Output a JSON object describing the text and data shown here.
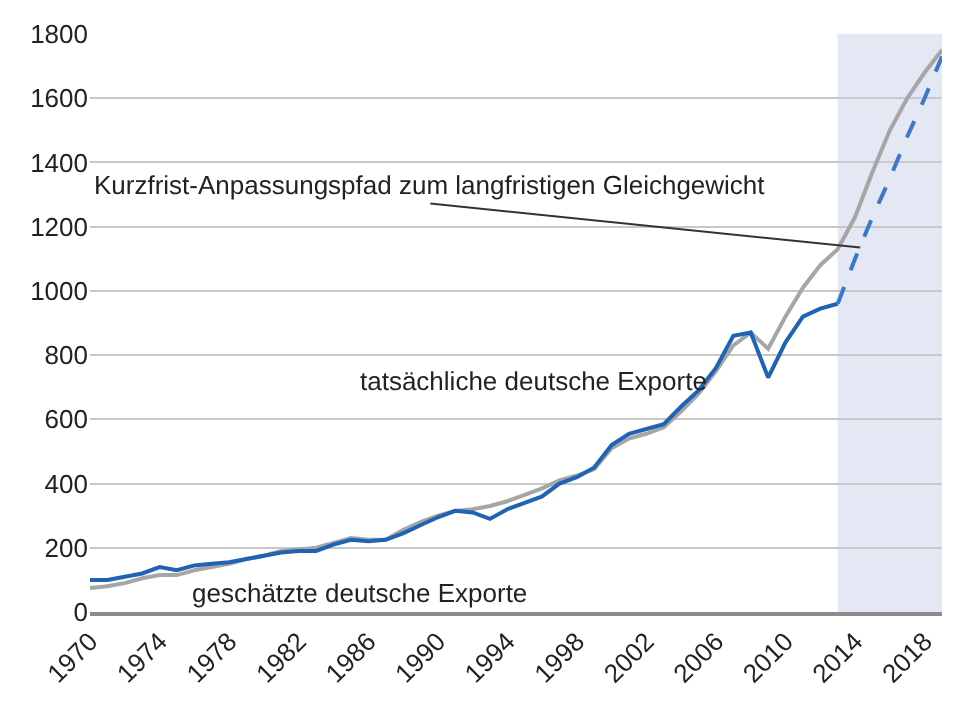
{
  "chart_data": {
    "type": "line",
    "xlim": [
      1970,
      2019
    ],
    "xticks": [
      1970,
      1974,
      1978,
      1982,
      1986,
      1990,
      1994,
      1998,
      2002,
      2006,
      2010,
      2014,
      2018
    ],
    "ylim": [
      0,
      1800
    ],
    "yticks": [
      0,
      200,
      400,
      600,
      800,
      1000,
      1200,
      1400,
      1600,
      1800
    ],
    "grid": "y",
    "legend": false,
    "bands": [
      {
        "axis": "x",
        "from": 2013,
        "to": 2019,
        "color": "#e4e8f4"
      }
    ],
    "series": [
      {
        "name": "geschätzte deutsche Exporte",
        "color": "#a6a6a6",
        "line_style": "solid",
        "x": [
          1970,
          1971,
          1972,
          1973,
          1974,
          1975,
          1976,
          1977,
          1978,
          1979,
          1980,
          1981,
          1982,
          1983,
          1984,
          1985,
          1986,
          1987,
          1988,
          1989,
          1990,
          1991,
          1992,
          1993,
          1994,
          1995,
          1996,
          1997,
          1998,
          1999,
          2000,
          2001,
          2002,
          2003,
          2004,
          2005,
          2006,
          2007,
          2008,
          2009,
          2010,
          2011,
          2012,
          2013,
          2014,
          2015,
          2016,
          2017,
          2018,
          2019
        ],
        "values": [
          75,
          80,
          90,
          105,
          115,
          115,
          130,
          140,
          150,
          165,
          175,
          190,
          195,
          200,
          215,
          230,
          225,
          225,
          255,
          280,
          300,
          315,
          320,
          330,
          345,
          365,
          385,
          410,
          425,
          445,
          510,
          540,
          555,
          575,
          625,
          680,
          750,
          830,
          870,
          820,
          920,
          1010,
          1080,
          1130,
          1230,
          1370,
          1500,
          1600,
          1680,
          1750
        ]
      },
      {
        "name": "tatsächliche deutsche Exporte",
        "color": "#1f64b4",
        "line_style": "solid",
        "x": [
          1970,
          1971,
          1972,
          1973,
          1974,
          1975,
          1976,
          1977,
          1978,
          1979,
          1980,
          1981,
          1982,
          1983,
          1984,
          1985,
          1986,
          1987,
          1988,
          1989,
          1990,
          1991,
          1992,
          1993,
          1994,
          1995,
          1996,
          1997,
          1998,
          1999,
          2000,
          2001,
          2002,
          2003,
          2004,
          2005,
          2006,
          2007,
          2008,
          2009,
          2010,
          2011,
          2012,
          2013
        ],
        "values": [
          100,
          100,
          110,
          120,
          140,
          130,
          145,
          150,
          155,
          165,
          175,
          185,
          190,
          190,
          210,
          225,
          220,
          225,
          245,
          270,
          295,
          315,
          310,
          290,
          320,
          340,
          360,
          400,
          420,
          450,
          520,
          555,
          570,
          585,
          640,
          690,
          760,
          860,
          870,
          730,
          840,
          920,
          945,
          960
        ]
      },
      {
        "name": "Kurzfrist-Anpassungspfad zum langfristigen Gleichgewicht",
        "color": "#3a78c8",
        "line_style": "dashed",
        "x": [
          2013,
          2014,
          2015,
          2016,
          2017,
          2018,
          2019
        ],
        "values": [
          960,
          1100,
          1230,
          1350,
          1480,
          1600,
          1730
        ]
      }
    ]
  }
}
